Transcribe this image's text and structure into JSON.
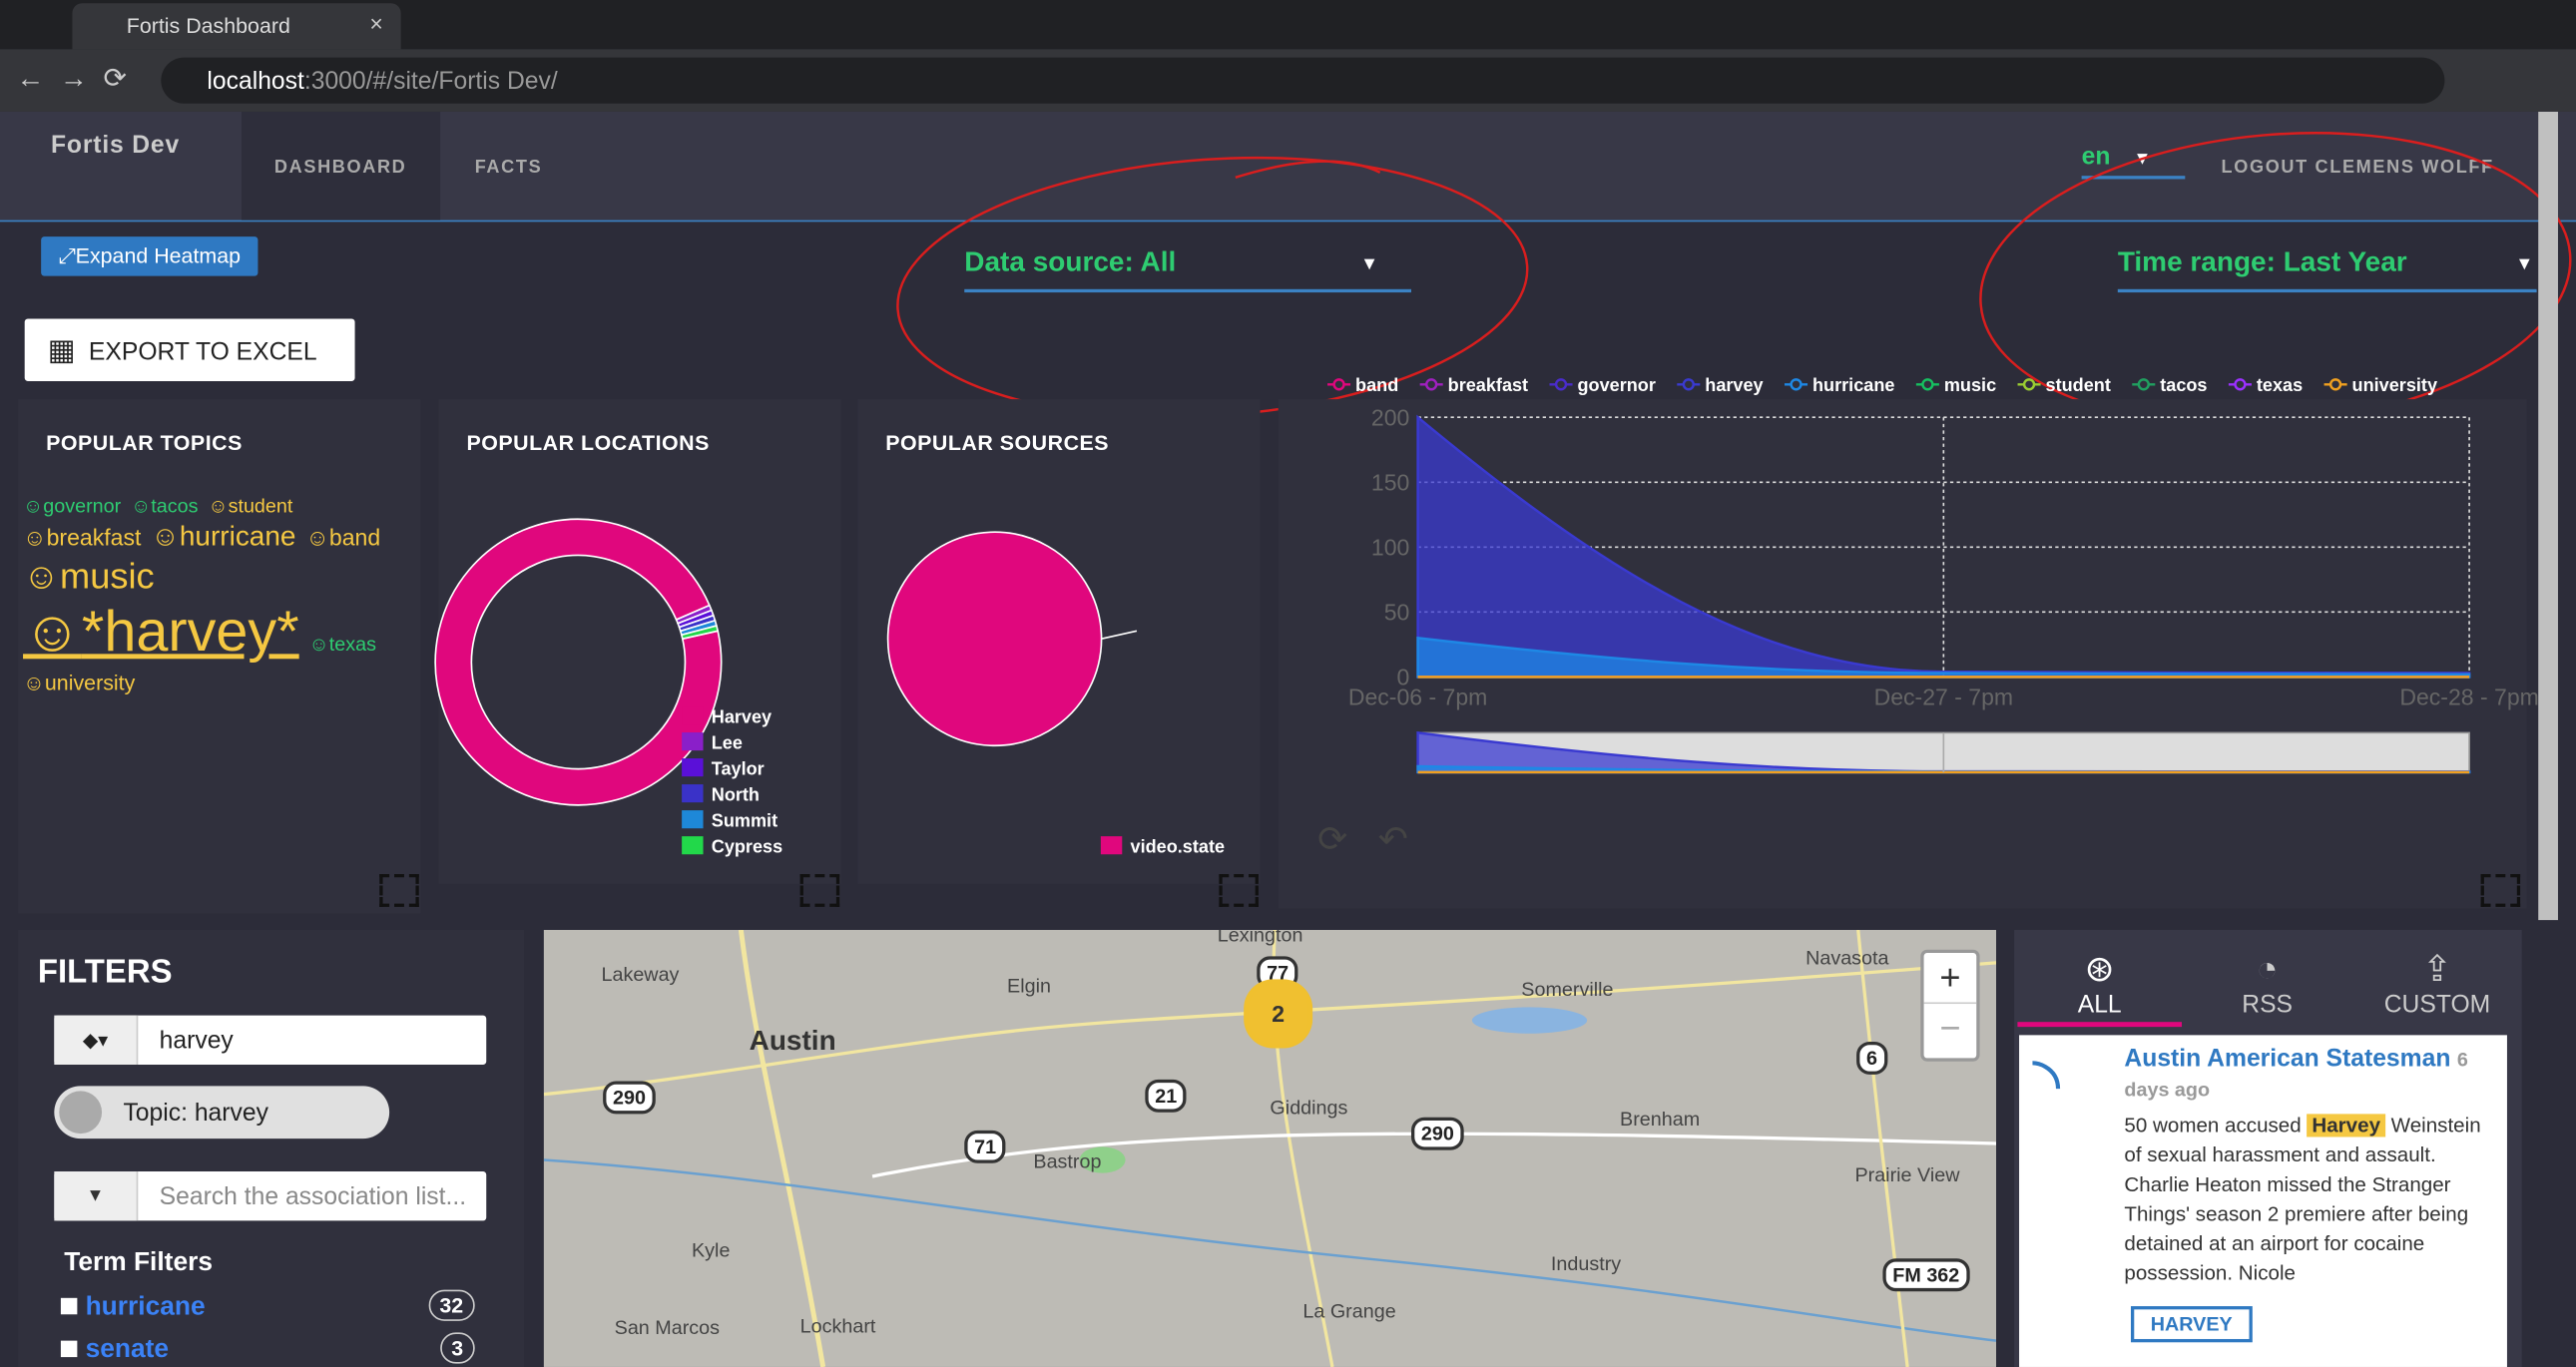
{
  "browser": {
    "tab_title": "Fortis Dashboard",
    "url_host": "localhost",
    "url_rest": ":3000/#/site/Fortis Dev/"
  },
  "nav": {
    "site": "Fortis Dev",
    "tabs": [
      "DASHBOARD",
      "FACTS"
    ],
    "language": "en",
    "logout": "LOGOUT CLEMENS WOLFF"
  },
  "toolbar": {
    "expand": "Expand Heatmap",
    "export": "EXPORT TO EXCEL",
    "data_source": "Data source: All",
    "time_range": "Time range: Last Year"
  },
  "topics": {
    "title": "POPULAR TOPICS",
    "words": [
      "governor",
      "tacos",
      "student",
      "breakfast",
      "hurricane",
      "band",
      "music",
      "*harvey*",
      "texas",
      "university"
    ]
  },
  "locations": {
    "title": "POPULAR LOCATIONS",
    "type": "donut",
    "categories": [
      "Harvey",
      "Lee",
      "Taylor",
      "North",
      "Summit",
      "Cypress"
    ],
    "values": [
      97,
      0.6,
      0.6,
      0.6,
      0.6,
      0.6
    ],
    "colors": [
      "#e0077d",
      "#8a1fc9",
      "#5a10d8",
      "#3a32c8",
      "#1e88d8",
      "#22d84a"
    ]
  },
  "sources": {
    "title": "POPULAR SOURCES",
    "type": "donut",
    "categories": [
      "video.state"
    ],
    "values": [
      100
    ],
    "colors": [
      "#e0077d"
    ]
  },
  "chart_data": {
    "type": "area",
    "x": [
      "Dec-06 - 7pm",
      "Dec-27 - 7pm",
      "Dec-28 - 7pm"
    ],
    "ylim": [
      0,
      200
    ],
    "yticks": [
      0,
      50,
      100,
      150,
      200
    ],
    "grid": true,
    "series": [
      {
        "name": "band",
        "color": "#e0077d",
        "values": [
          0,
          0,
          0
        ]
      },
      {
        "name": "breakfast",
        "color": "#a020c0",
        "values": [
          0,
          0,
          0
        ]
      },
      {
        "name": "governor",
        "color": "#4a2ccc",
        "values": [
          0,
          0,
          0
        ]
      },
      {
        "name": "harvey",
        "color": "#3a3ad0",
        "values": [
          200,
          4,
          3
        ]
      },
      {
        "name": "hurricane",
        "color": "#1e88e5",
        "values": [
          30,
          3,
          2
        ]
      },
      {
        "name": "music",
        "color": "#16c060",
        "values": [
          0,
          0,
          0
        ]
      },
      {
        "name": "student",
        "color": "#9acd32",
        "values": [
          0,
          0,
          0
        ]
      },
      {
        "name": "tacos",
        "color": "#20a060",
        "values": [
          0,
          0,
          0
        ]
      },
      {
        "name": "texas",
        "color": "#9b30ff",
        "values": [
          0,
          0,
          0
        ]
      },
      {
        "name": "university",
        "color": "#f0a020",
        "values": [
          0,
          0,
          0
        ]
      }
    ]
  },
  "filters": {
    "title": "FILTERS",
    "search_value": "harvey",
    "topic_chip": "Topic: harvey",
    "assoc_placeholder": "Search the association list...",
    "term_filters_title": "Term Filters",
    "terms": [
      {
        "name": "hurricane",
        "count": 32
      },
      {
        "name": "senate",
        "count": 3
      }
    ]
  },
  "map": {
    "places": [
      "Lexington",
      "Lakeway",
      "Elgin",
      "Austin",
      "Navasota",
      "Somerville",
      "Giddings",
      "Brenham",
      "Bastrop",
      "Prairie View",
      "Kyle",
      "Industry",
      "San Marcos",
      "Lockhart",
      "La Grange"
    ],
    "shields": [
      "77",
      "290",
      "21",
      "71",
      "290",
      "6",
      "FM 362"
    ],
    "cluster": "2",
    "zoom_in": "+",
    "zoom_out": "−"
  },
  "feed": {
    "tabs": [
      "ALL",
      "RSS",
      "CUSTOM"
    ],
    "source": "Austin American Statesman",
    "time": "6 days ago",
    "text_before": "50 women accused ",
    "highlight": "Harvey",
    "text_after": " Weinstein of sexual harassment and assault. Charlie Heaton missed the Stranger Things' season 2 premiere after being detained at an airport for cocaine possession. Nicole",
    "tag": "HARVEY"
  }
}
